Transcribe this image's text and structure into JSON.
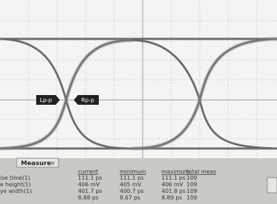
{
  "markers": {
    "left": "Lp-p",
    "right": "Rp-p"
  },
  "panel": {
    "tab": "Measure",
    "columns": [
      "current",
      "minimum",
      "maximum",
      "total meas"
    ],
    "rows": [
      {
        "label": "ise time(1)",
        "cells": [
          "111.1 ps",
          "111.1 ps",
          "111.1 ps",
          "109"
        ]
      },
      {
        "label": "e height(1)",
        "cells": [
          "406 mV",
          "405 mV",
          "406 mV",
          "109"
        ]
      },
      {
        "label": "ye width(1)",
        "cells": [
          "401.7 ps",
          "400.7 ps",
          "401.8 ps",
          "109"
        ]
      },
      {
        "label": "",
        "cells": [
          "8.88 ps",
          "8.67 ps",
          "8.89 ps",
          "109"
        ]
      }
    ]
  }
}
